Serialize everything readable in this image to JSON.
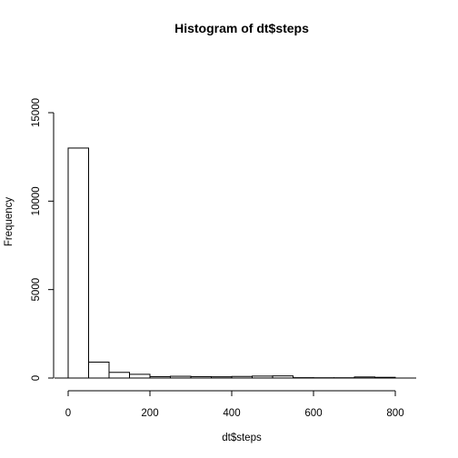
{
  "chart_data": {
    "type": "bar",
    "title": "Histogram of dt$steps",
    "xlabel": "dt$steps",
    "ylabel": "Frequency",
    "bins": [
      {
        "start": 0,
        "end": 50,
        "count": 13000
      },
      {
        "start": 50,
        "end": 100,
        "count": 900
      },
      {
        "start": 100,
        "end": 150,
        "count": 320
      },
      {
        "start": 150,
        "end": 200,
        "count": 210
      },
      {
        "start": 200,
        "end": 250,
        "count": 80
      },
      {
        "start": 250,
        "end": 300,
        "count": 100
      },
      {
        "start": 300,
        "end": 350,
        "count": 80
      },
      {
        "start": 350,
        "end": 400,
        "count": 70
      },
      {
        "start": 400,
        "end": 450,
        "count": 90
      },
      {
        "start": 450,
        "end": 500,
        "count": 110
      },
      {
        "start": 500,
        "end": 550,
        "count": 120
      },
      {
        "start": 550,
        "end": 600,
        "count": 20
      },
      {
        "start": 600,
        "end": 650,
        "count": 15
      },
      {
        "start": 650,
        "end": 700,
        "count": 15
      },
      {
        "start": 700,
        "end": 750,
        "count": 60
      },
      {
        "start": 750,
        "end": 800,
        "count": 40
      },
      {
        "start": 800,
        "end": 850,
        "count": 0
      }
    ],
    "x_ticks": [
      0,
      200,
      400,
      600,
      800
    ],
    "y_ticks": [
      0,
      5000,
      10000,
      15000
    ],
    "xlim": [
      0,
      850
    ],
    "ylim": [
      0,
      15000
    ],
    "bar_fill": "#ffffff",
    "bar_stroke": "#000000"
  }
}
